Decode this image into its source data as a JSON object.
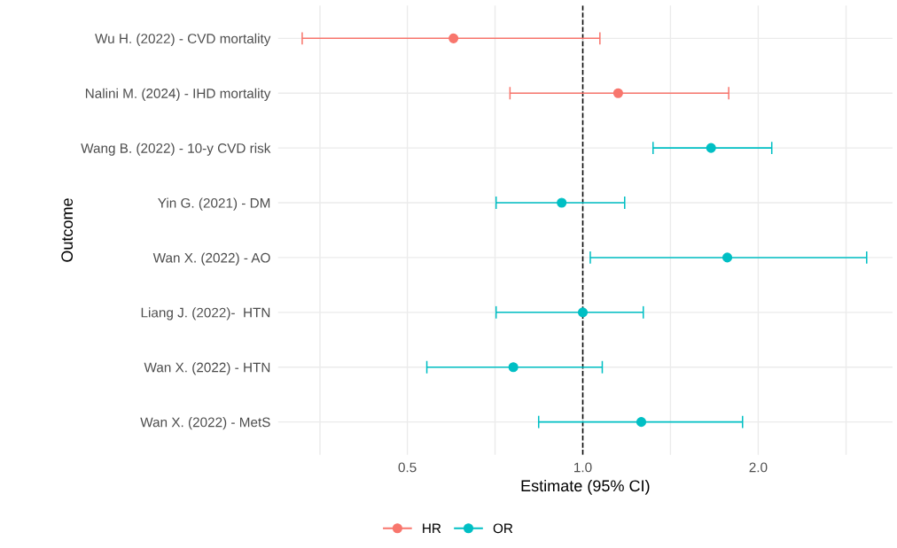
{
  "chart_data": {
    "type": "scatter",
    "orientation": "horizontal",
    "xlabel": "Estimate (95% CI)",
    "ylabel": "Outcome",
    "categories": [
      "Wu H. (2022) - CVD mortality",
      "Nalini M. (2024) - IHD mortality",
      "Wang B. (2022) - 10-y CVD risk",
      "Yin G. (2021) - DM",
      "Wan X. (2022) - AO",
      "Liang J. (2022)-  HTN",
      "Wan X. (2022) - HTN",
      "Wan X. (2022) - MetS"
    ],
    "series": [
      {
        "name": "HR",
        "color": "#f8766d",
        "values": [
          0.6,
          1.15,
          null,
          null,
          null,
          null,
          null,
          null
        ],
        "errors": [
          [
            0.33,
            1.07
          ],
          [
            0.75,
            1.78
          ],
          null,
          null,
          null,
          null,
          null,
          null
        ]
      },
      {
        "name": "OR",
        "color": "#00bfc4",
        "values": [
          null,
          null,
          1.66,
          0.92,
          1.77,
          1.0,
          0.76,
          1.26
        ],
        "errors": [
          null,
          null,
          [
            1.32,
            2.11
          ],
          [
            0.71,
            1.18
          ],
          [
            1.03,
            3.07
          ],
          [
            0.71,
            1.27
          ],
          [
            0.54,
            1.08
          ],
          [
            0.84,
            1.88
          ]
        ]
      }
    ],
    "log": "x",
    "xlim": [
      0.3,
      3.4
    ],
    "xticks": [
      {
        "value": 0.354,
        "label": null
      },
      0.5,
      {
        "value": 0.707,
        "label": null
      },
      {
        "value": 1,
        "label": "1.0"
      },
      {
        "value": 1.414,
        "label": null
      },
      {
        "value": 2,
        "label": "2.0"
      },
      {
        "value": 2.83,
        "label": null
      }
    ],
    "ref_lines": [
      {
        "axis": "x",
        "value": 1.0,
        "color": "#000000",
        "line_style": "dashed"
      }
    ],
    "grid": true,
    "legend": "bottom",
    "marker": "circle"
  }
}
